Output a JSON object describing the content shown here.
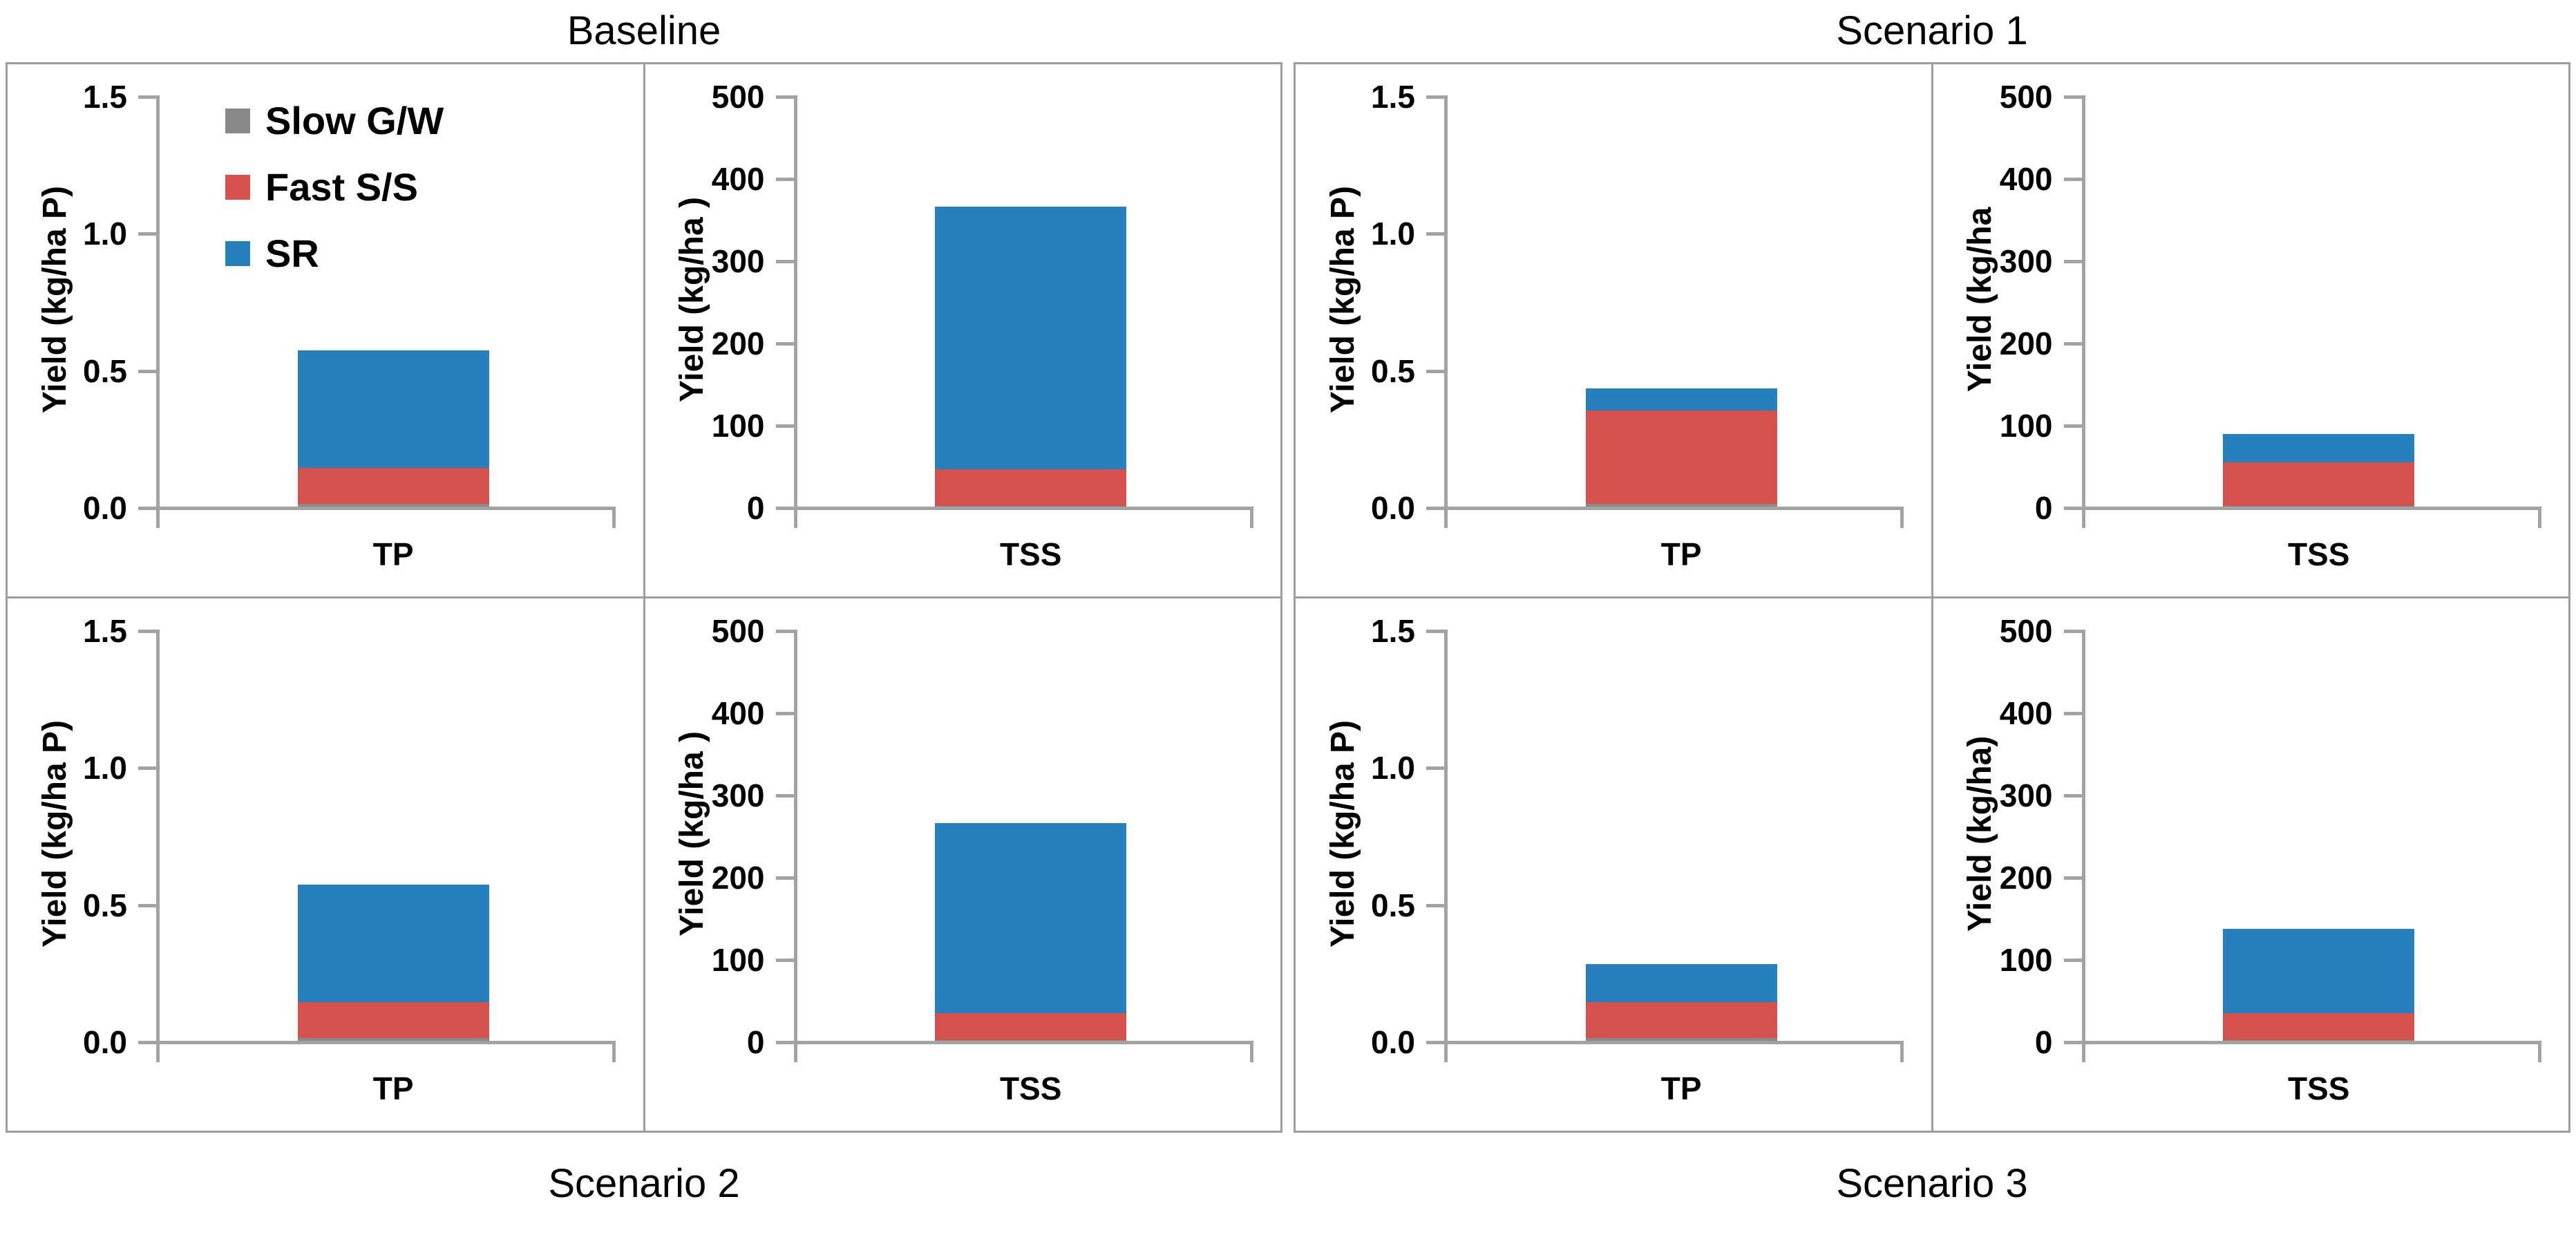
{
  "figure": {
    "top_titles": [
      "Baseline",
      "Scenario 1"
    ],
    "bottom_titles": [
      "Scenario 2",
      "Scenario 3"
    ],
    "colors": {
      "slow": "#898989",
      "fast": "#D5514E",
      "sr": "#2680BD",
      "axis": "#A3A3A3",
      "border": "#9D9D9D",
      "text": "#000000",
      "background": "#FFFFFF"
    },
    "legend": {
      "position": "top-left-of-first-panel",
      "entries": [
        {
          "label": "Slow G/W",
          "color_key": "slow"
        },
        {
          "label": "Fast S/S",
          "color_key": "fast"
        },
        {
          "label": "SR",
          "color_key": "sr"
        }
      ]
    }
  },
  "chart_data": [
    {
      "type": "bar",
      "stacked": true,
      "group": "Baseline",
      "position": "top-left",
      "category": "TP",
      "ylabel": "Yield (kg/ha P)",
      "ylim": [
        0,
        1.5
      ],
      "yticks": [
        0,
        0.5,
        1,
        1.5
      ],
      "ytick_labels": [
        "0.0",
        "0.5",
        "1.0",
        "1.5"
      ],
      "grid": false,
      "show_legend": true,
      "series": [
        {
          "name": "Slow G/W",
          "color_key": "slow",
          "value": 0.01
        },
        {
          "name": "Fast S/S",
          "color_key": "fast",
          "value": 0.13
        },
        {
          "name": "SR",
          "color_key": "sr",
          "value": 0.43
        }
      ],
      "total": 0.57
    },
    {
      "type": "bar",
      "stacked": true,
      "group": "Baseline",
      "position": "top-right",
      "category": "TSS",
      "ylabel": "Yield (kg/ha )",
      "ylim": [
        0,
        500
      ],
      "yticks": [
        0,
        100,
        200,
        300,
        400,
        500
      ],
      "ytick_labels": [
        "0",
        "100",
        "200",
        "300",
        "400",
        "500"
      ],
      "grid": false,
      "show_legend": false,
      "series": [
        {
          "name": "Slow G/W",
          "color_key": "slow",
          "value": 1
        },
        {
          "name": "Fast S/S",
          "color_key": "fast",
          "value": 44
        },
        {
          "name": "SR",
          "color_key": "sr",
          "value": 320
        }
      ],
      "total": 365
    },
    {
      "type": "bar",
      "stacked": true,
      "group": "Scenario 1",
      "position": "top-left",
      "category": "TP",
      "ylabel": "Yield (kg/ha P)",
      "ylim": [
        0,
        1.5
      ],
      "yticks": [
        0,
        0.5,
        1,
        1.5
      ],
      "ytick_labels": [
        "0.0",
        "0.5",
        "1.0",
        "1.5"
      ],
      "grid": false,
      "show_legend": false,
      "series": [
        {
          "name": "Slow G/W",
          "color_key": "slow",
          "value": 0.01
        },
        {
          "name": "Fast S/S",
          "color_key": "fast",
          "value": 0.34
        },
        {
          "name": "SR",
          "color_key": "sr",
          "value": 0.08
        }
      ],
      "total": 0.43
    },
    {
      "type": "bar",
      "stacked": true,
      "group": "Scenario 1",
      "position": "top-right",
      "category": "TSS",
      "ylabel": "Yield (kg/ha",
      "ylim": [
        0,
        500
      ],
      "yticks": [
        0,
        100,
        200,
        300,
        400,
        500
      ],
      "ytick_labels": [
        "0",
        "100",
        "200",
        "300",
        "400",
        "500"
      ],
      "grid": false,
      "show_legend": false,
      "series": [
        {
          "name": "Slow G/W",
          "color_key": "slow",
          "value": 1
        },
        {
          "name": "Fast S/S",
          "color_key": "fast",
          "value": 53
        },
        {
          "name": "SR",
          "color_key": "sr",
          "value": 34
        }
      ],
      "total": 88
    },
    {
      "type": "bar",
      "stacked": true,
      "group": "Scenario 2",
      "position": "bottom-left",
      "category": "TP",
      "ylabel": "Yield (kg/ha P)",
      "ylim": [
        0,
        1.5
      ],
      "yticks": [
        0,
        0.5,
        1,
        1.5
      ],
      "ytick_labels": [
        "0.0",
        "0.5",
        "1.0",
        "1.5"
      ],
      "grid": false,
      "show_legend": false,
      "series": [
        {
          "name": "Slow G/W",
          "color_key": "slow",
          "value": 0.01
        },
        {
          "name": "Fast S/S",
          "color_key": "fast",
          "value": 0.13
        },
        {
          "name": "SR",
          "color_key": "sr",
          "value": 0.43
        }
      ],
      "total": 0.57
    },
    {
      "type": "bar",
      "stacked": true,
      "group": "Scenario 2",
      "position": "bottom-right",
      "category": "TSS",
      "ylabel": "Yield (kg/ha )",
      "ylim": [
        0,
        500
      ],
      "yticks": [
        0,
        100,
        200,
        300,
        400,
        500
      ],
      "ytick_labels": [
        "0",
        "100",
        "200",
        "300",
        "400",
        "500"
      ],
      "grid": false,
      "show_legend": false,
      "series": [
        {
          "name": "Slow G/W",
          "color_key": "slow",
          "value": 1
        },
        {
          "name": "Fast S/S",
          "color_key": "fast",
          "value": 33
        },
        {
          "name": "SR",
          "color_key": "sr",
          "value": 231
        }
      ],
      "total": 265
    },
    {
      "type": "bar",
      "stacked": true,
      "group": "Scenario 3",
      "position": "bottom-left",
      "category": "TP",
      "ylabel": "Yield (kg/ha P)",
      "ylim": [
        0,
        1.5
      ],
      "yticks": [
        0,
        0.5,
        1,
        1.5
      ],
      "ytick_labels": [
        "0.0",
        "0.5",
        "1.0",
        "1.5"
      ],
      "grid": false,
      "show_legend": false,
      "series": [
        {
          "name": "Slow G/W",
          "color_key": "slow",
          "value": 0.01
        },
        {
          "name": "Fast S/S",
          "color_key": "fast",
          "value": 0.13
        },
        {
          "name": "SR",
          "color_key": "sr",
          "value": 0.14
        }
      ],
      "total": 0.28
    },
    {
      "type": "bar",
      "stacked": true,
      "group": "Scenario 3",
      "position": "bottom-right",
      "category": "TSS",
      "ylabel": "Yield (kg/ha)",
      "ylim": [
        0,
        500
      ],
      "yticks": [
        0,
        100,
        200,
        300,
        400,
        500
      ],
      "ytick_labels": [
        "0",
        "100",
        "200",
        "300",
        "400",
        "500"
      ],
      "grid": false,
      "show_legend": false,
      "series": [
        {
          "name": "Slow G/W",
          "color_key": "slow",
          "value": 1
        },
        {
          "name": "Fast S/S",
          "color_key": "fast",
          "value": 33
        },
        {
          "name": "SR",
          "color_key": "sr",
          "value": 102
        }
      ],
      "total": 136
    }
  ]
}
